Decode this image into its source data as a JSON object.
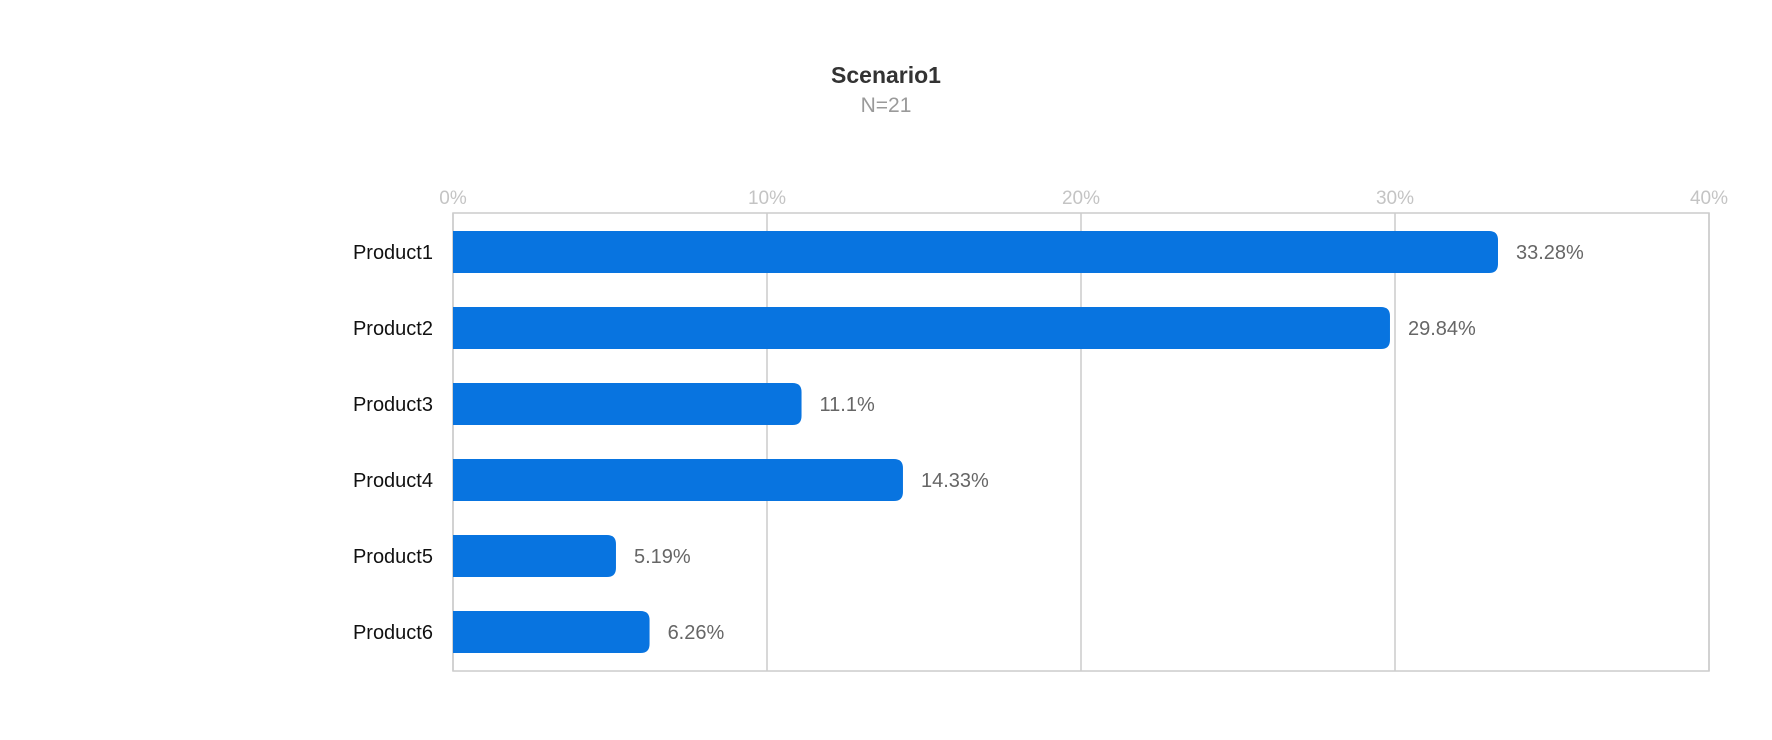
{
  "chart_data": {
    "type": "bar",
    "orientation": "horizontal",
    "title": "Scenario1",
    "subtitle": "N=21",
    "categories": [
      "Product1",
      "Product2",
      "Product3",
      "Product4",
      "Product5",
      "Product6"
    ],
    "values": [
      33.28,
      29.84,
      11.1,
      14.33,
      5.19,
      6.26
    ],
    "value_labels": [
      "33.28%",
      "29.84%",
      "11.1%",
      "14.33%",
      "5.19%",
      "6.26%"
    ],
    "xlim": [
      0,
      40
    ],
    "xticks": [
      0,
      10,
      20,
      30,
      40
    ],
    "xtick_labels": [
      "0%",
      "10%",
      "20%",
      "30%",
      "40%"
    ],
    "xaxis_position": "top",
    "grid": true,
    "bar_color": "#0874e0",
    "grid_color": "#cccccc"
  }
}
